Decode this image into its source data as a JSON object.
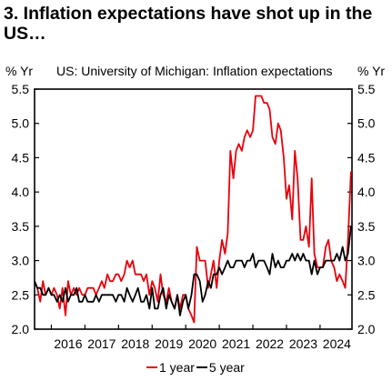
{
  "title": "3. Inflation expectations have shot up in the US…",
  "unit_left": "% Yr",
  "unit_right": "% Yr",
  "subtitle": "US: University of Michigan: Inflation expectations",
  "colors": {
    "one_year": "#e8000b",
    "five_year": "#000000"
  },
  "chart_data": {
    "type": "line",
    "title": "US: University of Michigan: Inflation expectations",
    "ylabel": "% Yr",
    "ylim": [
      2.0,
      5.5
    ],
    "yticks": [
      "2.0",
      "2.5",
      "3.0",
      "3.5",
      "4.0",
      "4.5",
      "5.0",
      "5.5"
    ],
    "xlim": [
      2015.5,
      2024.95
    ],
    "xticks": [
      "2016",
      "2017",
      "2018",
      "2019",
      "2020",
      "2021",
      "2022",
      "2023",
      "2024"
    ],
    "legend_position": "bottom",
    "grid": false,
    "series": [
      {
        "name": "1 year",
        "color": "#e8000b",
        "x": [
          2015.5,
          2015.58,
          2015.67,
          2015.75,
          2015.83,
          2015.92,
          2016.0,
          2016.08,
          2016.17,
          2016.25,
          2016.33,
          2016.42,
          2016.5,
          2016.58,
          2016.67,
          2016.75,
          2016.83,
          2016.92,
          2017.0,
          2017.08,
          2017.17,
          2017.25,
          2017.33,
          2017.42,
          2017.5,
          2017.58,
          2017.67,
          2017.75,
          2017.83,
          2017.92,
          2018.0,
          2018.08,
          2018.17,
          2018.25,
          2018.33,
          2018.42,
          2018.5,
          2018.58,
          2018.67,
          2018.75,
          2018.83,
          2018.92,
          2019.0,
          2019.08,
          2019.17,
          2019.25,
          2019.33,
          2019.42,
          2019.5,
          2019.58,
          2019.67,
          2019.75,
          2019.83,
          2019.92,
          2020.0,
          2020.08,
          2020.17,
          2020.25,
          2020.33,
          2020.42,
          2020.5,
          2020.58,
          2020.67,
          2020.75,
          2020.83,
          2020.92,
          2021.0,
          2021.08,
          2021.17,
          2021.25,
          2021.33,
          2021.42,
          2021.5,
          2021.58,
          2021.67,
          2021.75,
          2021.83,
          2021.92,
          2022.0,
          2022.08,
          2022.17,
          2022.25,
          2022.33,
          2022.42,
          2022.5,
          2022.58,
          2022.67,
          2022.75,
          2022.83,
          2022.92,
          2023.0,
          2023.08,
          2023.17,
          2023.25,
          2023.33,
          2023.42,
          2023.5,
          2023.58,
          2023.67,
          2023.75,
          2023.83,
          2023.92,
          2024.0,
          2024.08,
          2024.17,
          2024.25,
          2024.33,
          2024.42,
          2024.5,
          2024.58,
          2024.67,
          2024.75,
          2024.83,
          2024.92
        ],
        "values": [
          2.7,
          2.6,
          2.4,
          2.7,
          2.5,
          2.6,
          2.5,
          2.6,
          2.5,
          2.3,
          2.6,
          2.2,
          2.7,
          2.5,
          2.6,
          2.5,
          2.6,
          2.5,
          2.5,
          2.6,
          2.6,
          2.6,
          2.5,
          2.6,
          2.7,
          2.6,
          2.8,
          2.7,
          2.7,
          2.8,
          2.8,
          2.7,
          2.8,
          3.0,
          2.9,
          3.0,
          2.8,
          2.8,
          2.8,
          2.7,
          2.8,
          2.5,
          2.7,
          2.6,
          2.4,
          2.8,
          2.5,
          2.4,
          2.6,
          2.4,
          2.3,
          2.5,
          2.3,
          2.5,
          2.5,
          2.3,
          2.2,
          2.1,
          3.2,
          3.0,
          3.0,
          3.0,
          2.6,
          2.8,
          3.0,
          2.6,
          3.0,
          3.3,
          3.1,
          3.4,
          4.6,
          4.2,
          4.6,
          4.7,
          4.6,
          4.8,
          4.9,
          4.8,
          4.9,
          5.4,
          5.4,
          5.4,
          5.3,
          5.3,
          5.2,
          4.8,
          4.7,
          5.0,
          4.9,
          4.5,
          3.9,
          4.1,
          3.6,
          4.6,
          4.2,
          3.3,
          3.3,
          3.5,
          3.2,
          4.2,
          3.1,
          2.9,
          2.9,
          2.9,
          3.2,
          3.3,
          3.0,
          2.9,
          2.7,
          2.8,
          2.7,
          2.6,
          3.3,
          4.3
        ]
      },
      {
        "name": "5 year",
        "color": "#000000",
        "x": [
          2015.5,
          2015.58,
          2015.67,
          2015.75,
          2015.83,
          2015.92,
          2016.0,
          2016.08,
          2016.17,
          2016.25,
          2016.33,
          2016.42,
          2016.5,
          2016.58,
          2016.67,
          2016.75,
          2016.83,
          2016.92,
          2017.0,
          2017.08,
          2017.17,
          2017.25,
          2017.33,
          2017.42,
          2017.5,
          2017.58,
          2017.67,
          2017.75,
          2017.83,
          2017.92,
          2018.0,
          2018.08,
          2018.17,
          2018.25,
          2018.33,
          2018.42,
          2018.5,
          2018.58,
          2018.67,
          2018.75,
          2018.83,
          2018.92,
          2019.0,
          2019.08,
          2019.17,
          2019.25,
          2019.33,
          2019.42,
          2019.5,
          2019.58,
          2019.67,
          2019.75,
          2019.83,
          2019.92,
          2020.0,
          2020.08,
          2020.17,
          2020.25,
          2020.33,
          2020.42,
          2020.5,
          2020.58,
          2020.67,
          2020.75,
          2020.83,
          2020.92,
          2021.0,
          2021.08,
          2021.17,
          2021.25,
          2021.33,
          2021.42,
          2021.5,
          2021.58,
          2021.67,
          2021.75,
          2021.83,
          2021.92,
          2022.0,
          2022.08,
          2022.17,
          2022.25,
          2022.33,
          2022.42,
          2022.5,
          2022.58,
          2022.67,
          2022.75,
          2022.83,
          2022.92,
          2023.0,
          2023.08,
          2023.17,
          2023.25,
          2023.33,
          2023.42,
          2023.5,
          2023.58,
          2023.67,
          2023.75,
          2023.83,
          2023.92,
          2024.0,
          2024.08,
          2024.17,
          2024.25,
          2024.33,
          2024.42,
          2024.5,
          2024.58,
          2024.67,
          2024.75,
          2024.83,
          2024.92
        ],
        "values": [
          2.7,
          2.6,
          2.6,
          2.5,
          2.5,
          2.6,
          2.5,
          2.5,
          2.4,
          2.5,
          2.4,
          2.6,
          2.4,
          2.5,
          2.5,
          2.6,
          2.4,
          2.4,
          2.5,
          2.4,
          2.4,
          2.4,
          2.5,
          2.4,
          2.5,
          2.5,
          2.5,
          2.5,
          2.5,
          2.4,
          2.5,
          2.5,
          2.4,
          2.6,
          2.5,
          2.4,
          2.5,
          2.6,
          2.4,
          2.4,
          2.5,
          2.3,
          2.6,
          2.3,
          2.3,
          2.5,
          2.6,
          2.3,
          2.5,
          2.4,
          2.3,
          2.5,
          2.2,
          2.4,
          2.5,
          2.3,
          2.5,
          2.8,
          2.8,
          2.7,
          2.4,
          2.5,
          2.7,
          2.6,
          2.8,
          2.8,
          2.9,
          2.8,
          2.9,
          3.0,
          2.9,
          2.9,
          3.0,
          3.0,
          3.0,
          2.9,
          3.0,
          3.0,
          3.1,
          2.9,
          3.0,
          3.0,
          3.0,
          2.9,
          2.8,
          3.1,
          2.9,
          3.0,
          2.9,
          2.9,
          3.0,
          3.0,
          3.1,
          3.0,
          3.1,
          3.0,
          3.1,
          3.0,
          3.0,
          2.8,
          3.0,
          2.8,
          2.9,
          2.9,
          3.0,
          3.0,
          3.0,
          3.0,
          3.1,
          3.0,
          3.2,
          3.0,
          3.1,
          3.5
        ]
      }
    ]
  },
  "legend": {
    "one_year_label": "1 year",
    "five_year_label": "5 year"
  }
}
